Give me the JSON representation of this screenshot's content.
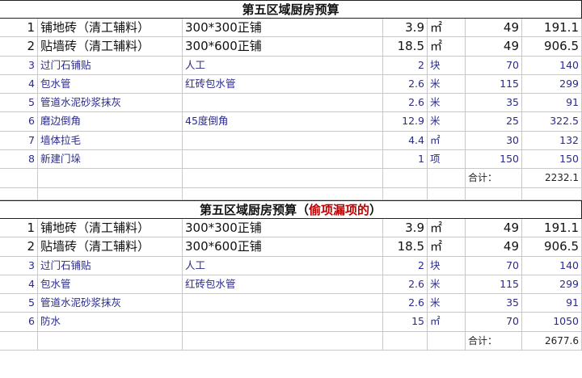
{
  "table1": {
    "title": "第五区域厨房预算",
    "title_note": "",
    "rows": [
      [
        "1",
        "铺地砖（清工辅料）",
        "300*300正铺",
        "3.9",
        "㎡",
        "49",
        "191.1"
      ],
      [
        "2",
        "贴墙砖（清工辅料）",
        "300*600正铺",
        "18.5",
        "㎡",
        "49",
        "906.5"
      ],
      [
        "3",
        "过门石铺贴",
        "人工",
        "2",
        "块",
        "70",
        "140"
      ],
      [
        "4",
        "包水管",
        "红砖包水管",
        "2.6",
        "米",
        "115",
        "299"
      ],
      [
        "5",
        "管道水泥砂浆抹灰",
        "",
        "2.6",
        "米",
        "35",
        "91"
      ],
      [
        "6",
        "磨边倒角",
        "45度倒角",
        "12.9",
        "米",
        "25",
        "322.5"
      ],
      [
        "7",
        "墙体拉毛",
        "",
        "4.4",
        "㎡",
        "30",
        "132"
      ],
      [
        "8",
        "新建门垛",
        "",
        "1",
        "项",
        "150",
        "150"
      ]
    ],
    "total_label": "合计：",
    "total": "2232.1"
  },
  "table2": {
    "title": "第五区域厨房预算（",
    "title_note": "偷项漏项的",
    "title_end": "）",
    "rows": [
      [
        "1",
        "铺地砖（清工辅料）",
        "300*300正铺",
        "3.9",
        "㎡",
        "49",
        "191.1"
      ],
      [
        "2",
        "贴墙砖（清工辅料）",
        "300*600正铺",
        "18.5",
        "㎡",
        "49",
        "906.5"
      ],
      [
        "3",
        "过门石铺贴",
        "人工",
        "2",
        "块",
        "70",
        "140"
      ],
      [
        "4",
        "包水管",
        "红砖包水管",
        "2.6",
        "米",
        "115",
        "299"
      ],
      [
        "5",
        "管道水泥砂浆抹灰",
        "",
        "2.6",
        "米",
        "35",
        "91"
      ],
      [
        "6",
        "防水",
        "",
        "15",
        "㎡",
        "70",
        "1050"
      ]
    ],
    "total_label": "合计：",
    "total": "2677.6"
  },
  "colors": {
    "title_note": "#c00000",
    "item_text": "#2b2b8c"
  }
}
